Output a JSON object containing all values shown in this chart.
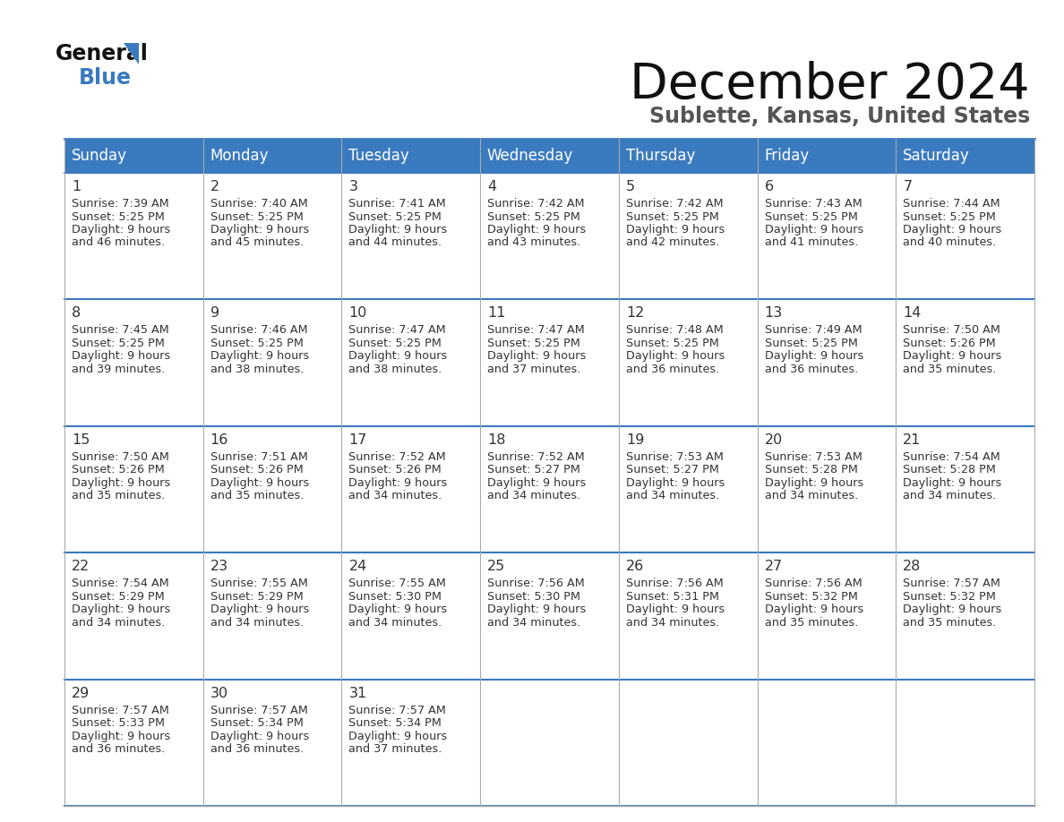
{
  "title": "December 2024",
  "subtitle": "Sublette, Kansas, United States",
  "header_color": "#3a7abf",
  "header_text_color": "#ffffff",
  "cell_bg_color": "#ffffff",
  "text_color": "#333333",
  "border_color": "#3a7abf",
  "grid_color": "#aaaaaa",
  "days_of_week": [
    "Sunday",
    "Monday",
    "Tuesday",
    "Wednesday",
    "Thursday",
    "Friday",
    "Saturday"
  ],
  "calendar_data": [
    [
      {
        "day": "1",
        "sunrise": "7:39 AM",
        "sunset": "5:25 PM",
        "daylight_h": "9 hours",
        "daylight_m": "46 minutes."
      },
      {
        "day": "2",
        "sunrise": "7:40 AM",
        "sunset": "5:25 PM",
        "daylight_h": "9 hours",
        "daylight_m": "45 minutes."
      },
      {
        "day": "3",
        "sunrise": "7:41 AM",
        "sunset": "5:25 PM",
        "daylight_h": "9 hours",
        "daylight_m": "44 minutes."
      },
      {
        "day": "4",
        "sunrise": "7:42 AM",
        "sunset": "5:25 PM",
        "daylight_h": "9 hours",
        "daylight_m": "43 minutes."
      },
      {
        "day": "5",
        "sunrise": "7:42 AM",
        "sunset": "5:25 PM",
        "daylight_h": "9 hours",
        "daylight_m": "42 minutes."
      },
      {
        "day": "6",
        "sunrise": "7:43 AM",
        "sunset": "5:25 PM",
        "daylight_h": "9 hours",
        "daylight_m": "41 minutes."
      },
      {
        "day": "7",
        "sunrise": "7:44 AM",
        "sunset": "5:25 PM",
        "daylight_h": "9 hours",
        "daylight_m": "40 minutes."
      }
    ],
    [
      {
        "day": "8",
        "sunrise": "7:45 AM",
        "sunset": "5:25 PM",
        "daylight_h": "9 hours",
        "daylight_m": "39 minutes."
      },
      {
        "day": "9",
        "sunrise": "7:46 AM",
        "sunset": "5:25 PM",
        "daylight_h": "9 hours",
        "daylight_m": "38 minutes."
      },
      {
        "day": "10",
        "sunrise": "7:47 AM",
        "sunset": "5:25 PM",
        "daylight_h": "9 hours",
        "daylight_m": "38 minutes."
      },
      {
        "day": "11",
        "sunrise": "7:47 AM",
        "sunset": "5:25 PM",
        "daylight_h": "9 hours",
        "daylight_m": "37 minutes."
      },
      {
        "day": "12",
        "sunrise": "7:48 AM",
        "sunset": "5:25 PM",
        "daylight_h": "9 hours",
        "daylight_m": "36 minutes."
      },
      {
        "day": "13",
        "sunrise": "7:49 AM",
        "sunset": "5:25 PM",
        "daylight_h": "9 hours",
        "daylight_m": "36 minutes."
      },
      {
        "day": "14",
        "sunrise": "7:50 AM",
        "sunset": "5:26 PM",
        "daylight_h": "9 hours",
        "daylight_m": "35 minutes."
      }
    ],
    [
      {
        "day": "15",
        "sunrise": "7:50 AM",
        "sunset": "5:26 PM",
        "daylight_h": "9 hours",
        "daylight_m": "35 minutes."
      },
      {
        "day": "16",
        "sunrise": "7:51 AM",
        "sunset": "5:26 PM",
        "daylight_h": "9 hours",
        "daylight_m": "35 minutes."
      },
      {
        "day": "17",
        "sunrise": "7:52 AM",
        "sunset": "5:26 PM",
        "daylight_h": "9 hours",
        "daylight_m": "34 minutes."
      },
      {
        "day": "18",
        "sunrise": "7:52 AM",
        "sunset": "5:27 PM",
        "daylight_h": "9 hours",
        "daylight_m": "34 minutes."
      },
      {
        "day": "19",
        "sunrise": "7:53 AM",
        "sunset": "5:27 PM",
        "daylight_h": "9 hours",
        "daylight_m": "34 minutes."
      },
      {
        "day": "20",
        "sunrise": "7:53 AM",
        "sunset": "5:28 PM",
        "daylight_h": "9 hours",
        "daylight_m": "34 minutes."
      },
      {
        "day": "21",
        "sunrise": "7:54 AM",
        "sunset": "5:28 PM",
        "daylight_h": "9 hours",
        "daylight_m": "34 minutes."
      }
    ],
    [
      {
        "day": "22",
        "sunrise": "7:54 AM",
        "sunset": "5:29 PM",
        "daylight_h": "9 hours",
        "daylight_m": "34 minutes."
      },
      {
        "day": "23",
        "sunrise": "7:55 AM",
        "sunset": "5:29 PM",
        "daylight_h": "9 hours",
        "daylight_m": "34 minutes."
      },
      {
        "day": "24",
        "sunrise": "7:55 AM",
        "sunset": "5:30 PM",
        "daylight_h": "9 hours",
        "daylight_m": "34 minutes."
      },
      {
        "day": "25",
        "sunrise": "7:56 AM",
        "sunset": "5:30 PM",
        "daylight_h": "9 hours",
        "daylight_m": "34 minutes."
      },
      {
        "day": "26",
        "sunrise": "7:56 AM",
        "sunset": "5:31 PM",
        "daylight_h": "9 hours",
        "daylight_m": "34 minutes."
      },
      {
        "day": "27",
        "sunrise": "7:56 AM",
        "sunset": "5:32 PM",
        "daylight_h": "9 hours",
        "daylight_m": "35 minutes."
      },
      {
        "day": "28",
        "sunrise": "7:57 AM",
        "sunset": "5:32 PM",
        "daylight_h": "9 hours",
        "daylight_m": "35 minutes."
      }
    ],
    [
      {
        "day": "29",
        "sunrise": "7:57 AM",
        "sunset": "5:33 PM",
        "daylight_h": "9 hours",
        "daylight_m": "36 minutes."
      },
      {
        "day": "30",
        "sunrise": "7:57 AM",
        "sunset": "5:34 PM",
        "daylight_h": "9 hours",
        "daylight_m": "36 minutes."
      },
      {
        "day": "31",
        "sunrise": "7:57 AM",
        "sunset": "5:34 PM",
        "daylight_h": "9 hours",
        "daylight_m": "37 minutes."
      },
      null,
      null,
      null,
      null
    ]
  ]
}
